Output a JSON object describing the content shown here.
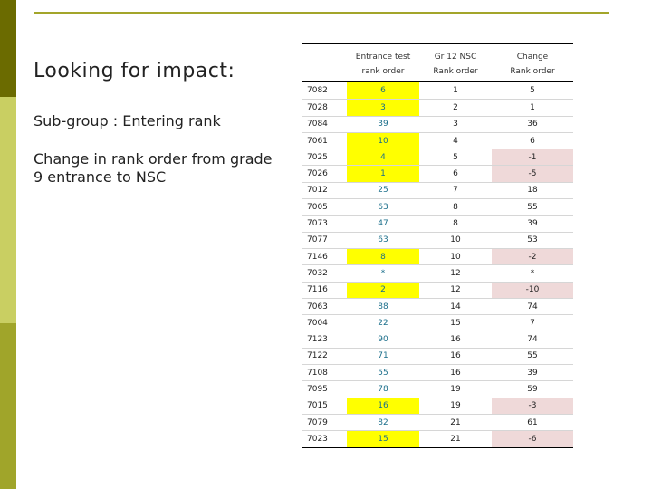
{
  "slide": {
    "title": "Looking for impact:",
    "subtitle": "Sub-group : Entering rank",
    "description": "Change in rank order from grade 9 entrance to NSC"
  },
  "table": {
    "headers": {
      "id": "",
      "entrance_line1": "Entrance test",
      "entrance_line2": "rank order",
      "nsc_line1": "Gr 12 NSC",
      "nsc_line2": "Rank order",
      "change_line1": "Change",
      "change_line2": "Rank order"
    },
    "rows": [
      {
        "id": "7082",
        "entrance": "6",
        "nsc": "1",
        "change": "5",
        "entrance_highlight": true,
        "change_highlight": false
      },
      {
        "id": "7028",
        "entrance": "3",
        "nsc": "2",
        "change": "1",
        "entrance_highlight": true,
        "change_highlight": false
      },
      {
        "id": "7084",
        "entrance": "39",
        "nsc": "3",
        "change": "36",
        "entrance_highlight": false,
        "change_highlight": false
      },
      {
        "id": "7061",
        "entrance": "10",
        "nsc": "4",
        "change": "6",
        "entrance_highlight": true,
        "change_highlight": false
      },
      {
        "id": "7025",
        "entrance": "4",
        "nsc": "5",
        "change": "-1",
        "entrance_highlight": true,
        "change_highlight": true
      },
      {
        "id": "7026",
        "entrance": "1",
        "nsc": "6",
        "change": "-5",
        "entrance_highlight": true,
        "change_highlight": true
      },
      {
        "id": "7012",
        "entrance": "25",
        "nsc": "7",
        "change": "18",
        "entrance_highlight": false,
        "change_highlight": false
      },
      {
        "id": "7005",
        "entrance": "63",
        "nsc": "8",
        "change": "55",
        "entrance_highlight": false,
        "change_highlight": false
      },
      {
        "id": "7073",
        "entrance": "47",
        "nsc": "8",
        "change": "39",
        "entrance_highlight": false,
        "change_highlight": false
      },
      {
        "id": "7077",
        "entrance": "63",
        "nsc": "10",
        "change": "53",
        "entrance_highlight": false,
        "change_highlight": false
      },
      {
        "id": "7146",
        "entrance": "8",
        "nsc": "10",
        "change": "-2",
        "entrance_highlight": true,
        "change_highlight": true
      },
      {
        "id": "7032",
        "entrance": "*",
        "nsc": "12",
        "change": "*",
        "entrance_highlight": false,
        "change_highlight": false
      },
      {
        "id": "7116",
        "entrance": "2",
        "nsc": "12",
        "change": "-10",
        "entrance_highlight": true,
        "change_highlight": true
      },
      {
        "id": "7063",
        "entrance": "88",
        "nsc": "14",
        "change": "74",
        "entrance_highlight": false,
        "change_highlight": false
      },
      {
        "id": "7004",
        "entrance": "22",
        "nsc": "15",
        "change": "7",
        "entrance_highlight": false,
        "change_highlight": false
      },
      {
        "id": "7123",
        "entrance": "90",
        "nsc": "16",
        "change": "74",
        "entrance_highlight": false,
        "change_highlight": false
      },
      {
        "id": "7122",
        "entrance": "71",
        "nsc": "16",
        "change": "55",
        "entrance_highlight": false,
        "change_highlight": false
      },
      {
        "id": "7108",
        "entrance": "55",
        "nsc": "16",
        "change": "39",
        "entrance_highlight": false,
        "change_highlight": false
      },
      {
        "id": "7095",
        "entrance": "78",
        "nsc": "19",
        "change": "59",
        "entrance_highlight": false,
        "change_highlight": false
      },
      {
        "id": "7015",
        "entrance": "16",
        "nsc": "19",
        "change": "-3",
        "entrance_highlight": true,
        "change_highlight": true
      },
      {
        "id": "7079",
        "entrance": "82",
        "nsc": "21",
        "change": "61",
        "entrance_highlight": false,
        "change_highlight": false
      },
      {
        "id": "7023",
        "entrance": "15",
        "nsc": "21",
        "change": "-6",
        "entrance_highlight": true,
        "change_highlight": true
      }
    ]
  },
  "colors": {
    "entrance_highlight": "#ffff00",
    "change_highlight": "#efd9d9",
    "entrance_text": "#1a6e8a",
    "accent_dark": "#6b6b00",
    "accent_light": "#c9cf62"
  }
}
